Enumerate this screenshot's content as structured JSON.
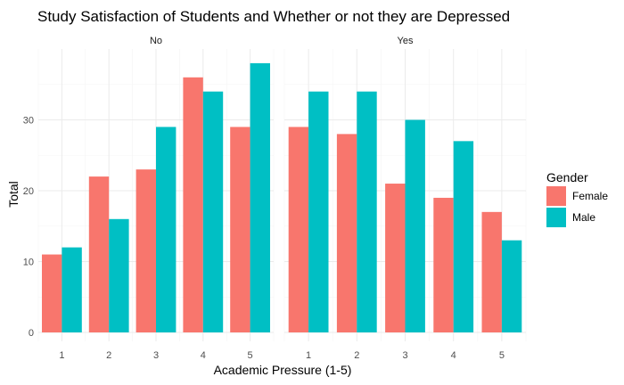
{
  "chart_data": {
    "type": "bar",
    "title": "Study Satisfaction of Students and Whether or not they are Depressed",
    "xlabel": "Academic Pressure (1-5)",
    "ylabel": "Total",
    "categories": [
      "1",
      "2",
      "3",
      "4",
      "5"
    ],
    "ylim": [
      0,
      40
    ],
    "yticks": [
      0,
      10,
      20,
      30
    ],
    "grid": true,
    "legend": {
      "title": "Gender",
      "position": "right"
    },
    "panels": [
      {
        "label": "No",
        "series": [
          {
            "name": "Female",
            "values": [
              11,
              22,
              23,
              36,
              29
            ]
          },
          {
            "name": "Male",
            "values": [
              12,
              16,
              29,
              34,
              38
            ]
          }
        ]
      },
      {
        "label": "Yes",
        "series": [
          {
            "name": "Female",
            "values": [
              29,
              28,
              21,
              19,
              17
            ]
          },
          {
            "name": "Male",
            "values": [
              34,
              34,
              30,
              27,
              13
            ]
          }
        ]
      }
    ],
    "colors": {
      "Female": "#F8766D",
      "Male": "#00BFC4"
    }
  }
}
